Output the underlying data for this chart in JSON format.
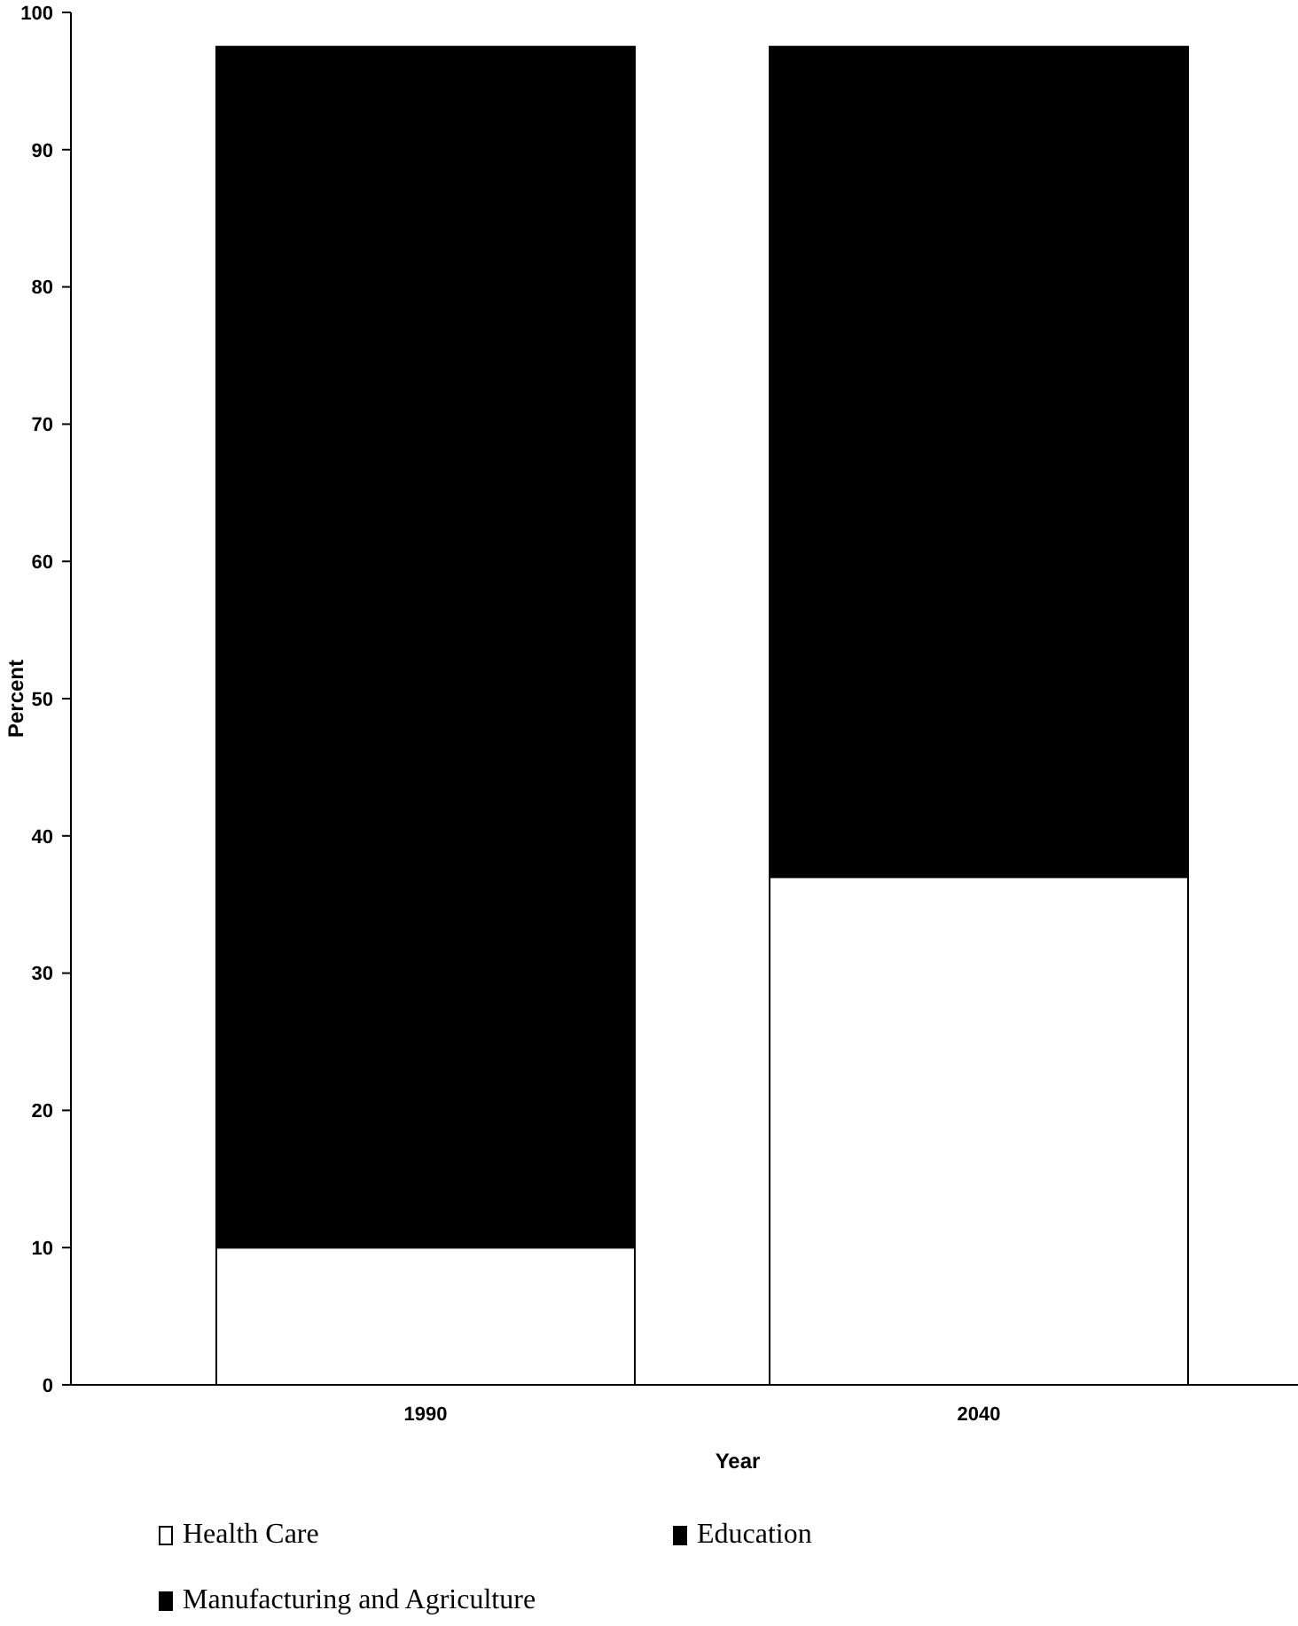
{
  "chart_data": {
    "type": "bar",
    "stacked": true,
    "xlabel": "Year",
    "ylabel": "Percent",
    "categories": [
      "1990",
      "2040"
    ],
    "series": [
      {
        "name": "Health Care",
        "color": "#ffffff",
        "values": [
          10,
          37
        ]
      },
      {
        "name": "Education",
        "color": "#000000",
        "values": [
          10,
          23
        ]
      },
      {
        "name": "Manufacturing and Agriculture",
        "color": "#000000",
        "values": [
          77.5,
          37.5
        ]
      }
    ],
    "ylim": [
      0,
      100
    ],
    "yticks": [
      0,
      10,
      20,
      30,
      40,
      50,
      60,
      70,
      80,
      90,
      100
    ],
    "grid": false,
    "legend": "bottom"
  }
}
